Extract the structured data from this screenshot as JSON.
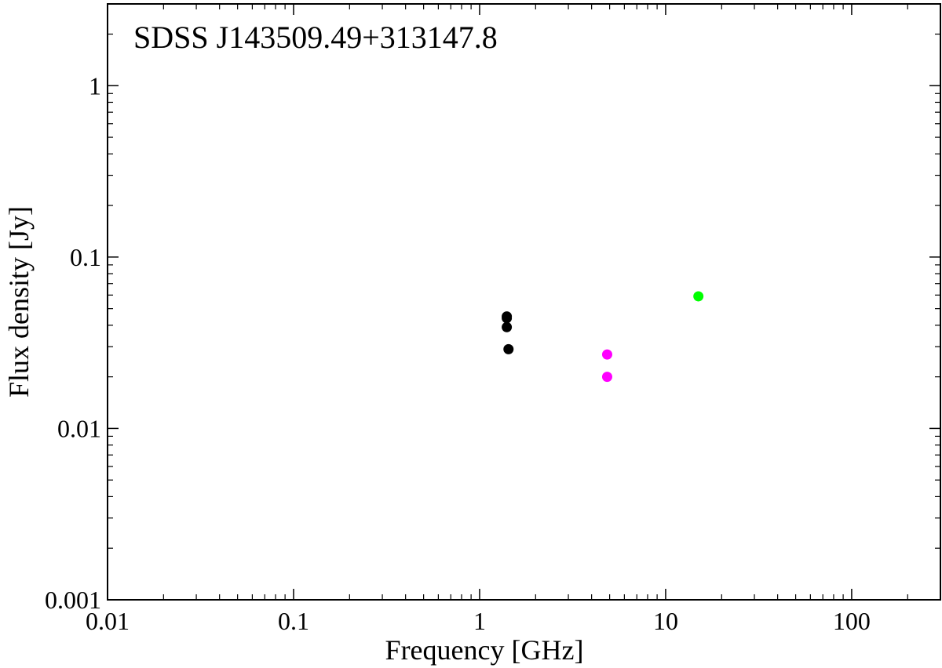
{
  "chart_data": {
    "type": "scatter",
    "title": "SDSS J143509.49+313147.8",
    "xlabel": "Frequency [GHz]",
    "ylabel": "Flux density [Jy]",
    "x_scale": "log",
    "y_scale": "log",
    "xlim": [
      0.01,
      300
    ],
    "ylim": [
      0.001,
      3
    ],
    "grid": false,
    "legend": "none",
    "x_ticks": [
      {
        "value": 0.01,
        "label": "0.01"
      },
      {
        "value": 0.1,
        "label": "0.1"
      },
      {
        "value": 1,
        "label": "1"
      },
      {
        "value": 10,
        "label": "10"
      },
      {
        "value": 100,
        "label": "100"
      }
    ],
    "y_ticks": [
      {
        "value": 0.001,
        "label": "0.001"
      },
      {
        "value": 0.01,
        "label": "0.01"
      },
      {
        "value": 0.1,
        "label": "0.1"
      },
      {
        "value": 1,
        "label": "1"
      }
    ],
    "series": [
      {
        "color": "#000000",
        "points": [
          {
            "x": 1.4,
            "y": 0.045
          },
          {
            "x": 1.4,
            "y": 0.044
          },
          {
            "x": 1.4,
            "y": 0.039
          },
          {
            "x": 1.43,
            "y": 0.029
          }
        ]
      },
      {
        "color": "#ff00ff",
        "points": [
          {
            "x": 4.85,
            "y": 0.027
          },
          {
            "x": 4.85,
            "y": 0.02
          }
        ]
      },
      {
        "color": "#00ff00",
        "points": [
          {
            "x": 15.0,
            "y": 0.059
          }
        ]
      }
    ]
  }
}
